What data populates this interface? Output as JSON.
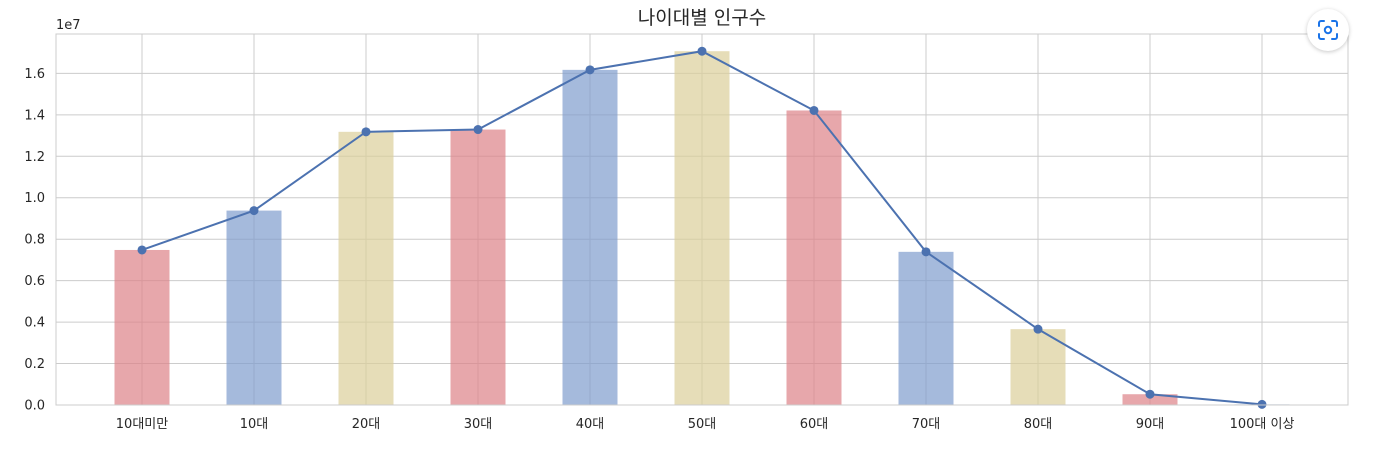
{
  "chart_data": {
    "type": "bar",
    "title": "나이대별 인구수",
    "xlabel": "",
    "ylabel": "",
    "y_scale_label": "1e7",
    "categories": [
      "10대미만",
      "10대",
      "20대",
      "30대",
      "40대",
      "50대",
      "60대",
      "70대",
      "80대",
      "90대",
      "100대 이상"
    ],
    "series": [
      {
        "type": "bar",
        "values": [
          7.48,
          9.38,
          13.18,
          13.29,
          16.17,
          17.07,
          14.21,
          7.39,
          3.66,
          0.52,
          0.03
        ],
        "value_unit_multiplier": 1000000,
        "colors_cycle": [
          "#dd8188",
          "#7f9ccd",
          "#dccf9a"
        ]
      },
      {
        "type": "line",
        "values": [
          7.48,
          9.38,
          13.18,
          13.29,
          16.17,
          17.07,
          14.21,
          7.39,
          3.66,
          0.52,
          0.03
        ],
        "value_unit_multiplier": 1000000,
        "color": "#4c72b0",
        "marker": "circle"
      }
    ],
    "yticks": [
      "0.0",
      "0.2",
      "0.4",
      "0.6",
      "0.8",
      "1.0",
      "1.2",
      "1.4",
      "1.6"
    ],
    "ylim": [
      0,
      17.9
    ],
    "grid": true,
    "legend": "none"
  },
  "overlay": {
    "lens_icon": "lens-scan-icon",
    "accent": "#1a73e8"
  }
}
